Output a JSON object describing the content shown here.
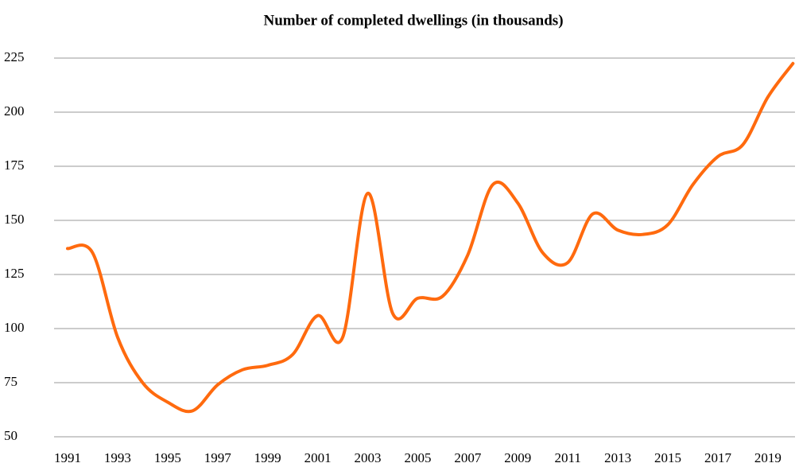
{
  "chart_data": {
    "type": "line",
    "title": "Number of completed dwellings (in thousands)",
    "categories": [
      "1991",
      null,
      "1993",
      null,
      "1995",
      null,
      "1997",
      null,
      "1999",
      null,
      "2001",
      null,
      "2003",
      null,
      "2005",
      null,
      "2007",
      null,
      "2009",
      null,
      "2011",
      null,
      "2013",
      null,
      "2015",
      null,
      "2017",
      null,
      "2019",
      null
    ],
    "series": [
      {
        "name": "Completed dwellings",
        "color": "#ff6a0e",
        "values": [
          137,
          135,
          96,
          75,
          66,
          62,
          74,
          81,
          83,
          88,
          106,
          96,
          162.5,
          107,
          114,
          115,
          134,
          166.5,
          158,
          135,
          130.5,
          153,
          145.5,
          143.5,
          148,
          166.5,
          179.5,
          185,
          207,
          222.5
        ]
      }
    ],
    "ylim": [
      50,
      225
    ],
    "yticks": [
      50,
      75,
      100,
      125,
      150,
      175,
      200,
      225
    ],
    "grid": true
  }
}
